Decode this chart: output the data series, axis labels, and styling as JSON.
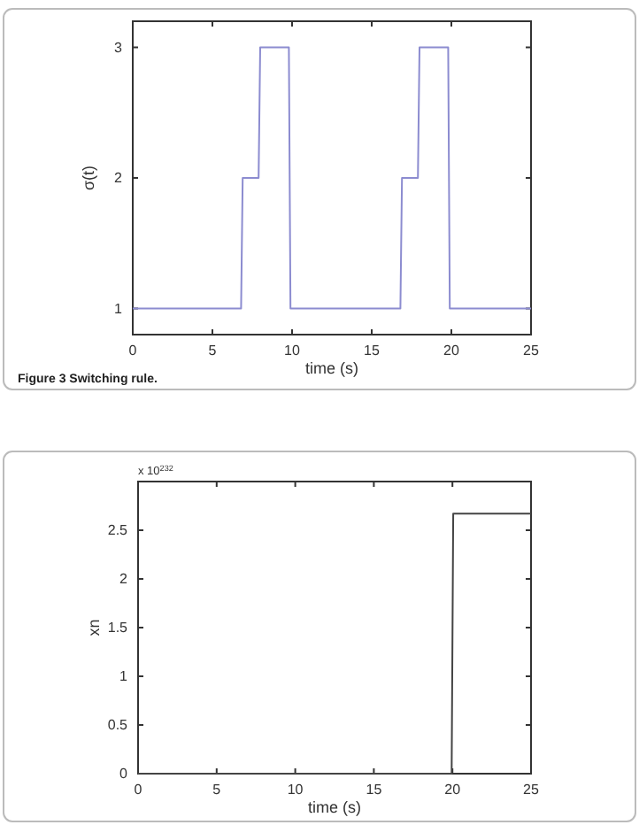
{
  "chart_data": [
    {
      "type": "line",
      "xlabel": "time (s)",
      "ylabel": "σ(t)",
      "annotations": [
        "Figure 3  Switching rule."
      ],
      "xlim": [
        0,
        25
      ],
      "ylim": [
        0.8,
        3.2
      ],
      "xticks": [
        0,
        5,
        10,
        15,
        20,
        25
      ],
      "yticks": [
        1,
        2,
        3
      ],
      "series": [
        {
          "color": "#8c8cd0",
          "x": [
            0,
            6.8,
            6.9,
            7.9,
            8,
            9.8,
            9.9,
            16.8,
            16.9,
            17.9,
            18,
            19.8,
            19.9,
            25
          ],
          "values": [
            1,
            1,
            2,
            2,
            3,
            3,
            1,
            1,
            2,
            2,
            3,
            3,
            1,
            1
          ]
        }
      ]
    },
    {
      "type": "line",
      "xlabel": "time (s)",
      "ylabel": "xn",
      "annotations": [
        "x 10$^{232}$"
      ],
      "xlim": [
        0,
        25
      ],
      "ylim": [
        0,
        3
      ],
      "xticks": [
        0,
        5,
        10,
        15,
        20,
        25
      ],
      "yticks": [
        0,
        0.5,
        1,
        1.5,
        2,
        2.5
      ],
      "series": [
        {
          "color": "#444444",
          "x": [
            0,
            19.95,
            20.05,
            25
          ],
          "values": [
            0,
            0,
            2.67,
            2.67
          ]
        }
      ]
    }
  ]
}
